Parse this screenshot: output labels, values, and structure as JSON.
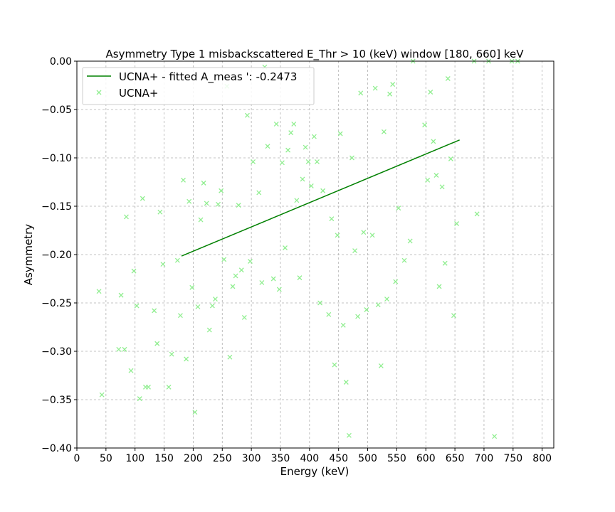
{
  "chart_data": {
    "type": "scatter",
    "title": "Asymmetry Type 1 misbackscattered E_Thr > 10 (keV) window [180, 660] keV",
    "xlabel": "Energy (keV)",
    "ylabel": "Asymmetry",
    "xlim": [
      0,
      820
    ],
    "ylim": [
      -0.4,
      0.0
    ],
    "xticks": [
      0,
      50,
      100,
      150,
      200,
      250,
      300,
      350,
      400,
      450,
      500,
      550,
      600,
      650,
      700,
      750,
      800
    ],
    "yticks": [
      0.0,
      -0.05,
      -0.1,
      -0.15,
      -0.2,
      -0.25,
      -0.3,
      -0.35,
      -0.4
    ],
    "xtick_labels": [
      "0",
      "50",
      "100",
      "150",
      "200",
      "250",
      "300",
      "350",
      "400",
      "450",
      "500",
      "550",
      "600",
      "650",
      "700",
      "750",
      "800"
    ],
    "ytick_labels": [
      "0.00",
      "−0.05",
      "−0.10",
      "−0.15",
      "−0.20",
      "−0.25",
      "−0.30",
      "−0.35",
      "−0.40"
    ],
    "grid": true,
    "legend_position": "top-left",
    "colors": {
      "fit": "#008000",
      "points": "#90ee90"
    },
    "series": [
      {
        "name": "UCNA+ - fitted A_meas ': -0.2473",
        "kind": "line",
        "x": [
          180,
          658
        ],
        "y": [
          -0.2015,
          -0.0815
        ]
      },
      {
        "name": "UCNA+",
        "kind": "scatter",
        "x": [
          38,
          43,
          72,
          76,
          82,
          85,
          93,
          98,
          103,
          108,
          113,
          118,
          123,
          133,
          138,
          143,
          148,
          158,
          163,
          173,
          178,
          183,
          188,
          193,
          198,
          203,
          208,
          213,
          218,
          223,
          228,
          233,
          238,
          243,
          248,
          253,
          258,
          263,
          268,
          273,
          278,
          283,
          288,
          293,
          298,
          303,
          313,
          318,
          323,
          328,
          338,
          343,
          348,
          353,
          358,
          363,
          368,
          373,
          378,
          383,
          388,
          393,
          398,
          403,
          408,
          413,
          418,
          423,
          433,
          438,
          443,
          448,
          453,
          458,
          463,
          468,
          473,
          478,
          483,
          488,
          493,
          498,
          508,
          513,
          518,
          523,
          528,
          533,
          538,
          543,
          548,
          553,
          563,
          573,
          578,
          598,
          603,
          608,
          613,
          618,
          623,
          628,
          633,
          638,
          643,
          648,
          653,
          683,
          688,
          708,
          718,
          748,
          758
        ],
        "y": [
          -0.238,
          -0.345,
          -0.298,
          -0.242,
          -0.298,
          -0.161,
          -0.32,
          -0.217,
          -0.253,
          -0.349,
          -0.142,
          -0.337,
          -0.337,
          -0.258,
          -0.292,
          -0.156,
          -0.21,
          -0.337,
          -0.303,
          -0.206,
          -0.263,
          -0.123,
          -0.308,
          -0.145,
          -0.234,
          -0.363,
          -0.254,
          -0.164,
          -0.126,
          -0.147,
          -0.278,
          -0.253,
          -0.246,
          -0.148,
          -0.134,
          -0.205,
          -0.026,
          -0.306,
          -0.233,
          -0.222,
          -0.149,
          -0.216,
          -0.265,
          -0.056,
          -0.207,
          -0.104,
          -0.136,
          -0.229,
          -0.006,
          -0.088,
          -0.225,
          -0.065,
          -0.236,
          -0.105,
          -0.193,
          -0.092,
          -0.074,
          -0.065,
          -0.144,
          -0.224,
          -0.122,
          -0.089,
          -0.104,
          -0.129,
          -0.078,
          -0.104,
          -0.25,
          -0.134,
          -0.262,
          -0.163,
          -0.314,
          -0.18,
          -0.075,
          -0.273,
          -0.332,
          -0.387,
          -0.1,
          -0.196,
          -0.264,
          -0.033,
          -0.177,
          -0.257,
          -0.18,
          -0.028,
          -0.252,
          -0.315,
          -0.073,
          -0.246,
          -0.034,
          -0.024,
          -0.228,
          -0.152,
          -0.206,
          -0.186,
          0.0,
          -0.066,
          -0.123,
          -0.032,
          -0.083,
          -0.118,
          -0.233,
          -0.13,
          -0.209,
          -0.018,
          -0.101,
          -0.263,
          -0.168,
          0.0,
          -0.158,
          0.0,
          -0.388,
          0.0,
          0.0
        ]
      }
    ]
  }
}
